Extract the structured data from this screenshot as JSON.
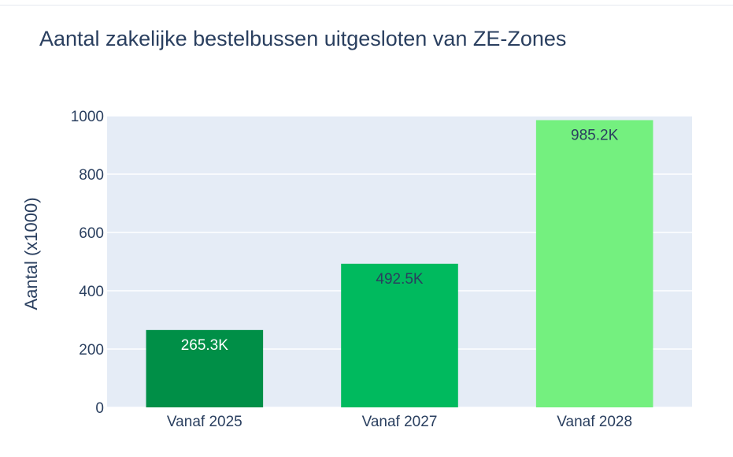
{
  "chart_data": {
    "type": "bar",
    "title": "Aantal zakelijke bestelbussen uitgesloten van ZE-Zones",
    "xlabel": "",
    "ylabel": "Aantal (x1000)",
    "categories": [
      "Vanaf 2025",
      "Vanaf 2027",
      "Vanaf 2028"
    ],
    "values": [
      265.3,
      492.5,
      985.2
    ],
    "data_labels": [
      "265.3K",
      "492.5K",
      "985.2K"
    ],
    "bar_colors": [
      "#008f47",
      "#00ba5e",
      "#74f07f"
    ],
    "data_label_colors": [
      "#ffffff",
      "#2a3f5f",
      "#2a3f5f"
    ],
    "ylim": [
      0,
      1000
    ],
    "yticks": [
      0,
      200,
      400,
      600,
      800,
      1000
    ],
    "grid": true,
    "legend": "none",
    "plot_background": "#e5ecf6",
    "text_color": "#2a3f5f"
  }
}
